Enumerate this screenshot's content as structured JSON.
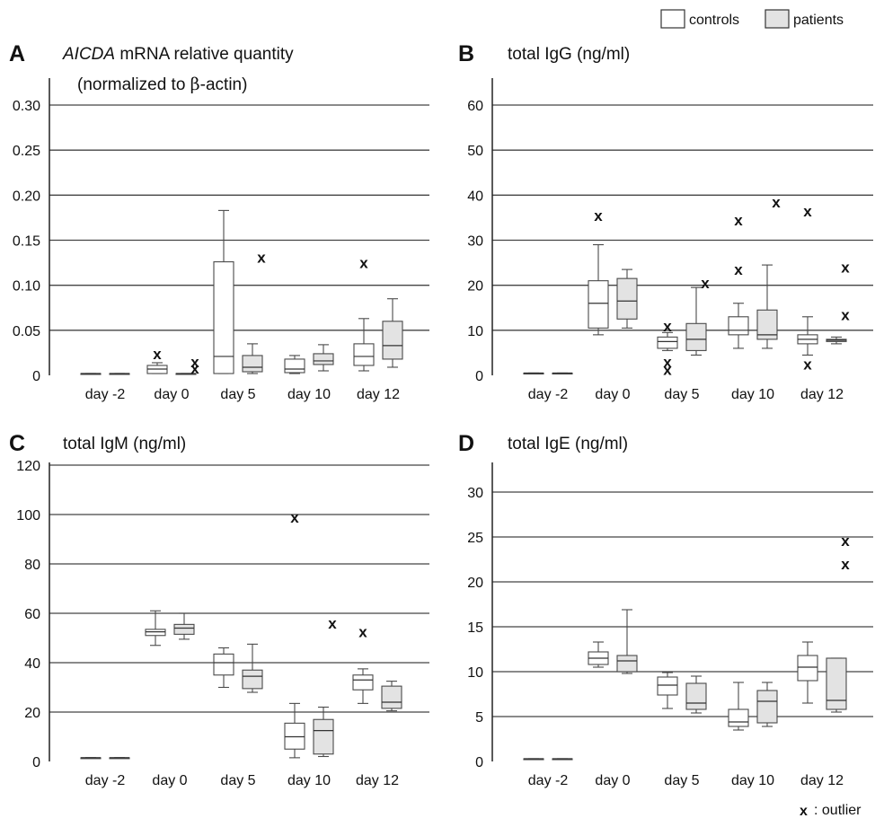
{
  "legend": {
    "items": [
      {
        "label": "controls",
        "color": "#ffffff"
      },
      {
        "label": "patients",
        "color": "#e3e3e3"
      }
    ],
    "placement": "top-right"
  },
  "outlier_note": {
    "symbol": "x",
    "label": ": outlier"
  },
  "chart_data": [
    {
      "type": "box",
      "panel_letter": "A",
      "title_parts": [
        "AICDA",
        " mRNA relative quantity"
      ],
      "title_line2_parts": [
        "(normalized to ",
        "β",
        "-actin)"
      ],
      "categories": [
        "day -2",
        "day  0",
        "day 5",
        "day 10",
        "day 12"
      ],
      "ylim": [
        0,
        0.3
      ],
      "yticks": [
        0,
        0.05,
        0.1,
        0.15,
        0.2,
        0.25,
        0.3
      ],
      "ytick_labels": [
        "0",
        "0.05",
        "0.10",
        "0.15",
        "0.20",
        "0.25",
        "0.30"
      ],
      "grid": true,
      "series": [
        {
          "name": "controls",
          "color": "#ffffff",
          "boxes": [
            {
              "min": 0.002,
              "q1": 0.002,
              "median": 0.002,
              "q3": 0.002,
              "max": 0.002,
              "outliers": []
            },
            {
              "min": 0.002,
              "q1": 0.002,
              "median": 0.007,
              "q3": 0.011,
              "max": 0.014,
              "outliers": [
                0.024
              ]
            },
            {
              "min": 0.002,
              "q1": 0.002,
              "median": 0.021,
              "q3": 0.126,
              "max": 0.183,
              "outliers": []
            },
            {
              "min": 0.002,
              "q1": 0.003,
              "median": 0.007,
              "q3": 0.018,
              "max": 0.022,
              "outliers": []
            },
            {
              "min": 0.005,
              "q1": 0.011,
              "median": 0.021,
              "q3": 0.035,
              "max": 0.063,
              "outliers": [
                0.125
              ]
            }
          ]
        },
        {
          "name": "patients",
          "color": "#e3e3e3",
          "boxes": [
            {
              "min": 0.002,
              "q1": 0.002,
              "median": 0.002,
              "q3": 0.002,
              "max": 0.002,
              "outliers": []
            },
            {
              "min": 0.002,
              "q1": 0.002,
              "median": 0.002,
              "q3": 0.002,
              "max": 0.002,
              "outliers": [
                0.015,
                0.008
              ]
            },
            {
              "min": 0.002,
              "q1": 0.004,
              "median": 0.009,
              "q3": 0.022,
              "max": 0.035,
              "outliers": [
                0.131
              ]
            },
            {
              "min": 0.005,
              "q1": 0.012,
              "median": 0.016,
              "q3": 0.024,
              "max": 0.034,
              "outliers": []
            },
            {
              "min": 0.009,
              "q1": 0.018,
              "median": 0.033,
              "q3": 0.06,
              "max": 0.085,
              "outliers": []
            }
          ]
        }
      ]
    },
    {
      "type": "box",
      "panel_letter": "B",
      "title_parts": [
        "total IgG (ng/ml)"
      ],
      "categories": [
        "day -2",
        "day  0",
        "day 5",
        "day 10",
        "day 12"
      ],
      "ylim": [
        0,
        60
      ],
      "yticks": [
        0,
        10,
        20,
        30,
        40,
        50,
        60
      ],
      "ytick_labels": [
        "0",
        "10",
        "20",
        "30",
        "40",
        "50",
        "60"
      ],
      "grid": true,
      "series": [
        {
          "name": "controls",
          "color": "#ffffff",
          "boxes": [
            {
              "min": 0.5,
              "q1": 0.5,
              "median": 0.5,
              "q3": 0.5,
              "max": 0.5,
              "outliers": []
            },
            {
              "min": 9,
              "q1": 10.5,
              "median": 16,
              "q3": 21,
              "max": 29,
              "outliers": [
                35.5
              ]
            },
            {
              "min": 5.5,
              "q1": 6,
              "median": 7.5,
              "q3": 8.5,
              "max": 9.5,
              "outliers": [
                11,
                3,
                1.3
              ]
            },
            {
              "min": 6,
              "q1": 9,
              "median": 10,
              "q3": 13,
              "max": 16,
              "outliers": [
                34.5,
                23.5
              ]
            },
            {
              "min": 4.5,
              "q1": 7,
              "median": 8,
              "q3": 9,
              "max": 13,
              "outliers": [
                36.5,
                2.5
              ]
            }
          ]
        },
        {
          "name": "patients",
          "color": "#e3e3e3",
          "boxes": [
            {
              "min": 0.5,
              "q1": 0.5,
              "median": 0.5,
              "q3": 0.5,
              "max": 0.5,
              "outliers": []
            },
            {
              "min": 10.5,
              "q1": 12.5,
              "median": 16.5,
              "q3": 21.5,
              "max": 23.5,
              "outliers": []
            },
            {
              "min": 4.5,
              "q1": 5.5,
              "median": 8,
              "q3": 11.5,
              "max": 19.5,
              "outliers": [
                20.5
              ]
            },
            {
              "min": 6,
              "q1": 8,
              "median": 9,
              "q3": 14.5,
              "max": 24.5,
              "outliers": [
                38.5
              ]
            },
            {
              "min": 7,
              "q1": 7.5,
              "median": 7.8,
              "q3": 8,
              "max": 8.5,
              "outliers": [
                24,
                13.5
              ]
            }
          ]
        }
      ]
    },
    {
      "type": "box",
      "panel_letter": "C",
      "title_parts": [
        "total IgM (ng/ml)"
      ],
      "categories": [
        "day -2",
        "day  0",
        "day 5",
        "day 10",
        "day 12"
      ],
      "ylim": [
        0,
        120
      ],
      "yticks": [
        0,
        20,
        40,
        60,
        80,
        100,
        120
      ],
      "ytick_labels": [
        "0",
        "20",
        "40",
        "60",
        "80",
        "100",
        "120"
      ],
      "grid": true,
      "series": [
        {
          "name": "controls",
          "color": "#ffffff",
          "boxes": [
            {
              "min": 1.5,
              "q1": 1.5,
              "median": 1.5,
              "q3": 1.5,
              "max": 1.5,
              "outliers": []
            },
            {
              "min": 47,
              "q1": 51,
              "median": 52.5,
              "q3": 53.5,
              "max": 61,
              "outliers": []
            },
            {
              "min": 30,
              "q1": 35,
              "median": 40,
              "q3": 43.5,
              "max": 46,
              "outliers": []
            },
            {
              "min": 1.5,
              "q1": 5,
              "median": 10,
              "q3": 15.5,
              "max": 23.5,
              "outliers": [
                99
              ]
            },
            {
              "min": 23.5,
              "q1": 29,
              "median": 33,
              "q3": 35,
              "max": 37.5,
              "outliers": [
                52.5
              ]
            }
          ]
        },
        {
          "name": "patients",
          "color": "#e3e3e3",
          "boxes": [
            {
              "min": 1.5,
              "q1": 1.5,
              "median": 1.5,
              "q3": 1.5,
              "max": 1.5,
              "outliers": []
            },
            {
              "min": 49.5,
              "q1": 51.5,
              "median": 54,
              "q3": 55.5,
              "max": 60,
              "outliers": []
            },
            {
              "min": 28,
              "q1": 29.5,
              "median": 34.5,
              "q3": 37,
              "max": 47.5,
              "outliers": []
            },
            {
              "min": 2,
              "q1": 3,
              "median": 12.5,
              "q3": 17,
              "max": 22,
              "outliers": [
                56
              ]
            },
            {
              "min": 20.5,
              "q1": 21.5,
              "median": 24,
              "q3": 30.5,
              "max": 32.5,
              "outliers": []
            }
          ]
        }
      ]
    },
    {
      "type": "box",
      "panel_letter": "D",
      "title_parts": [
        "total IgE (ng/ml)"
      ],
      "categories": [
        "day -2",
        "day  0",
        "day 5",
        "day 10",
        "day 12"
      ],
      "ylim": [
        0,
        30
      ],
      "yticks": [
        0,
        5,
        10,
        15,
        20,
        25,
        30
      ],
      "ytick_labels": [
        "0",
        "5",
        "10",
        "15",
        "20",
        "25",
        "30"
      ],
      "grid": true,
      "series": [
        {
          "name": "controls",
          "color": "#ffffff",
          "boxes": [
            {
              "min": 0.3,
              "q1": 0.3,
              "median": 0.3,
              "q3": 0.3,
              "max": 0.3,
              "outliers": []
            },
            {
              "min": 10.5,
              "q1": 10.8,
              "median": 11.5,
              "q3": 12.2,
              "max": 13.3,
              "outliers": []
            },
            {
              "min": 5.9,
              "q1": 7.4,
              "median": 8.5,
              "q3": 9.4,
              "max": 9.9,
              "outliers": []
            },
            {
              "min": 3.5,
              "q1": 3.9,
              "median": 4.4,
              "q3": 5.8,
              "max": 8.8,
              "outliers": []
            },
            {
              "min": 6.5,
              "q1": 9.0,
              "median": 10.5,
              "q3": 11.8,
              "max": 13.3,
              "outliers": []
            }
          ]
        },
        {
          "name": "patients",
          "color": "#e3e3e3",
          "boxes": [
            {
              "min": 0.3,
              "q1": 0.3,
              "median": 0.3,
              "q3": 0.3,
              "max": 0.3,
              "outliers": []
            },
            {
              "min": 9.8,
              "q1": 10.0,
              "median": 11.2,
              "q3": 11.8,
              "max": 16.9,
              "outliers": []
            },
            {
              "min": 5.4,
              "q1": 5.8,
              "median": 6.5,
              "q3": 8.7,
              "max": 9.5,
              "outliers": []
            },
            {
              "min": 3.9,
              "q1": 4.3,
              "median": 6.7,
              "q3": 7.9,
              "max": 8.8,
              "outliers": []
            },
            {
              "min": 5.5,
              "q1": 5.8,
              "median": 6.8,
              "q3": 11.5,
              "max": 11.5,
              "outliers": [
                24.6,
                22
              ]
            }
          ]
        }
      ]
    }
  ]
}
